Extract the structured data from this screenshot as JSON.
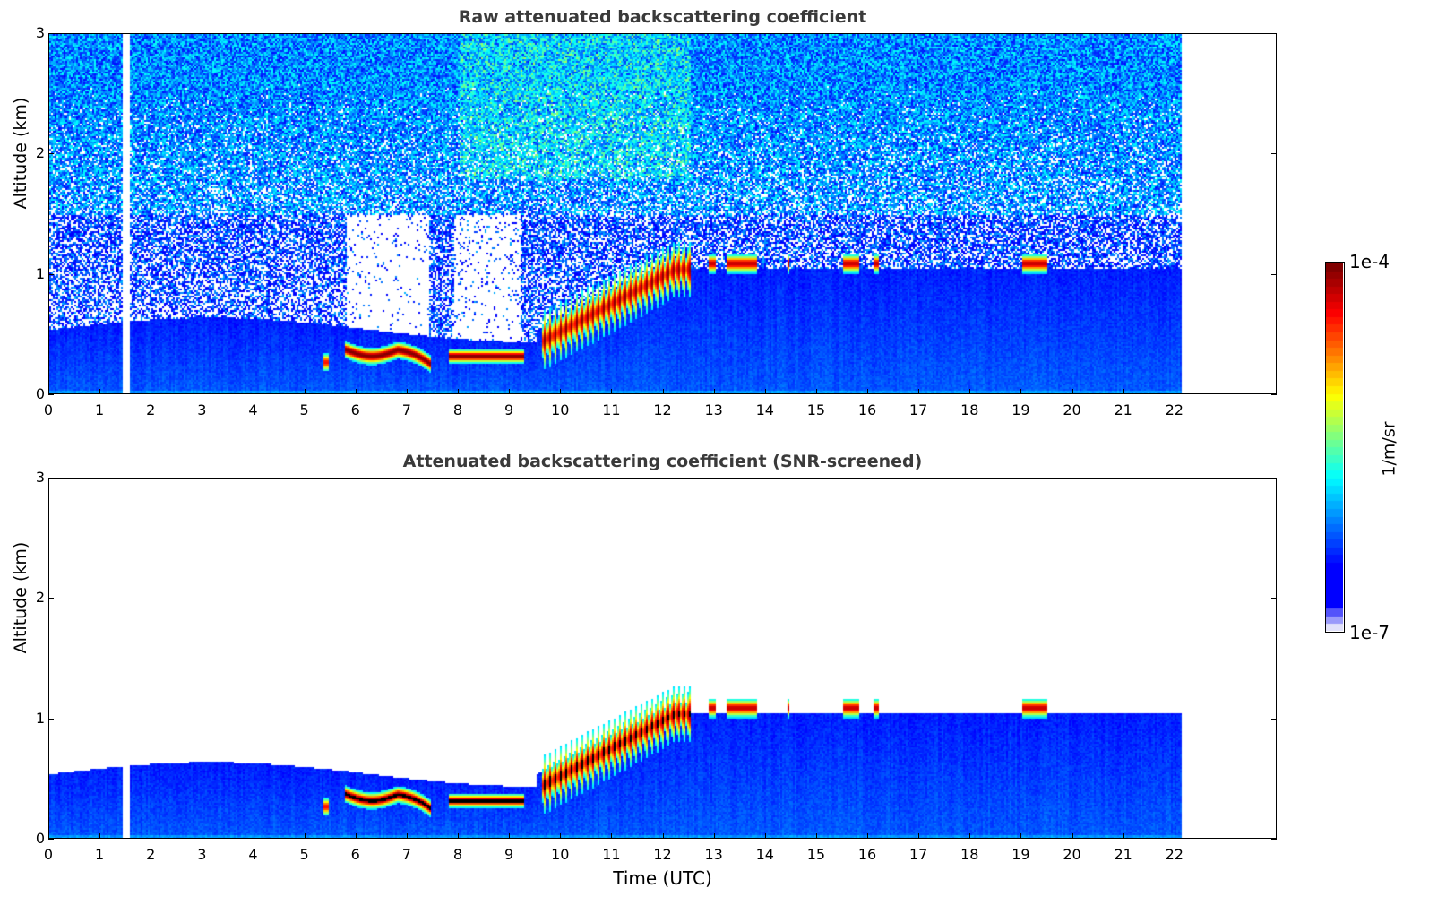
{
  "chart_data": [
    {
      "type": "heatmap",
      "title": "Raw attenuated backscattering coefficient",
      "xlabel": "",
      "ylabel": "Altitude (km)",
      "xlim": [
        0,
        24
      ],
      "ylim": [
        0,
        3
      ],
      "x_ticks": [
        "0",
        "1",
        "2",
        "3",
        "4",
        "5",
        "6",
        "7",
        "8",
        "9",
        "10",
        "11",
        "12",
        "13",
        "14",
        "15",
        "16",
        "17",
        "18",
        "19",
        "20",
        "21",
        "22"
      ],
      "y_ticks": [
        "0",
        "1",
        "2",
        "3"
      ],
      "data_time_range_h": [
        0,
        22.1
      ],
      "data_gap_h": [
        1.43,
        1.55
      ],
      "screened": false,
      "features": [
        {
          "name": "low cloud layer",
          "time_h": [
            5.8,
            7.4
          ],
          "altitude_km": [
            0.2,
            0.4
          ]
        },
        {
          "name": "low cloud layer",
          "time_h": [
            7.8,
            9.2
          ],
          "altitude_km": [
            0.3,
            0.35
          ]
        },
        {
          "name": "rising cloud layer",
          "time_h": [
            9.6,
            12.5
          ],
          "altitude_km": [
            0.5,
            1.1
          ]
        },
        {
          "name": "cloud patches",
          "time_h": [
            12.8,
            16.2
          ],
          "altitude_km": [
            1.0,
            1.15
          ]
        },
        {
          "name": "cloud patches",
          "time_h": [
            19.0,
            19.5
          ],
          "altitude_km": [
            1.05,
            1.1
          ]
        }
      ]
    },
    {
      "type": "heatmap",
      "title": "Attenuated backscattering coefficient (SNR-screened)",
      "xlabel": "Time (UTC)",
      "ylabel": "Altitude (km)",
      "xlim": [
        0,
        24
      ],
      "ylim": [
        0,
        3
      ],
      "x_ticks": [
        "0",
        "1",
        "2",
        "3",
        "4",
        "5",
        "6",
        "7",
        "8",
        "9",
        "10",
        "11",
        "12",
        "13",
        "14",
        "15",
        "16",
        "17",
        "18",
        "19",
        "20",
        "21",
        "22"
      ],
      "y_ticks": [
        "0",
        "1",
        "2",
        "3"
      ],
      "data_time_range_h": [
        0,
        22.1
      ],
      "data_gap_h": [
        1.43,
        1.55
      ],
      "screened": true
    }
  ],
  "colorbar": {
    "label": "1/m/sr",
    "max_label": "1e-4",
    "min_label": "1e-7",
    "scale": "log",
    "range": [
      1e-07,
      0.0001
    ],
    "colormap": "jet"
  }
}
